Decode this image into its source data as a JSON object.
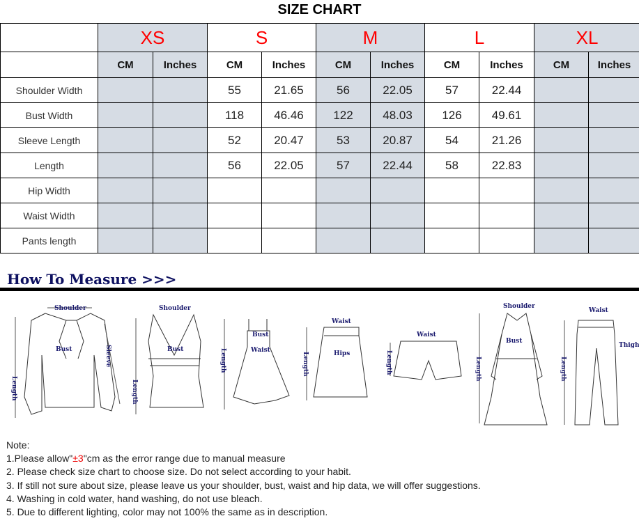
{
  "title": "SIZE CHART",
  "sizes": [
    "XS",
    "S",
    "M",
    "L",
    "XL"
  ],
  "units": [
    "CM",
    "Inches"
  ],
  "rows": [
    {
      "label": "Shoulder Width",
      "values": [
        "",
        "",
        "55",
        "21.65",
        "56",
        "22.05",
        "57",
        "22.44",
        "",
        ""
      ]
    },
    {
      "label": "Bust Width",
      "values": [
        "",
        "",
        "118",
        "46.46",
        "122",
        "48.03",
        "126",
        "49.61",
        "",
        ""
      ]
    },
    {
      "label": "Sleeve Length",
      "values": [
        "",
        "",
        "52",
        "20.47",
        "53",
        "20.87",
        "54",
        "21.26",
        "",
        ""
      ]
    },
    {
      "label": "Length",
      "values": [
        "",
        "",
        "56",
        "22.05",
        "57",
        "22.44",
        "58",
        "22.83",
        "",
        ""
      ]
    },
    {
      "label": "Hip Width",
      "values": [
        "",
        "",
        "",
        "",
        "",
        "",
        "",
        "",
        "",
        ""
      ]
    },
    {
      "label": "Waist Width",
      "values": [
        "",
        "",
        "",
        "",
        "",
        "",
        "",
        "",
        "",
        ""
      ]
    },
    {
      "label": "Pants length",
      "values": [
        "",
        "",
        "",
        "",
        "",
        "",
        "",
        "",
        "",
        ""
      ]
    }
  ],
  "how_to_measure": "How To Measure >>>",
  "diagram_labels": {
    "shoulder": "Shoulder",
    "bust": "Bust",
    "sleeve": "Sleeve",
    "length": "Length",
    "waist": "Waist",
    "hips": "Hips",
    "thigh": "Thigh"
  },
  "notes": {
    "heading": "Note:",
    "n1_pre": "1.Please allow\"",
    "n1_red": "±3",
    "n1_post": "\"cm as the error range due to manual measure",
    "n2": "2. Please check size chart to choose size. Do not select according to your habit.",
    "n3": "3. If still not sure about size, please leave us your shoulder, bust, waist and hip data, we will offer suggestions.",
    "n4": "4. Washing in cold water, hand washing, do not use bleach.",
    "n5": "5. Due to different lighting, color may not 100% the same as in description."
  },
  "colors": {
    "size_label": "#ff0000",
    "shaded_column": "#d6dce4",
    "heading_navy": "#0d1060"
  }
}
